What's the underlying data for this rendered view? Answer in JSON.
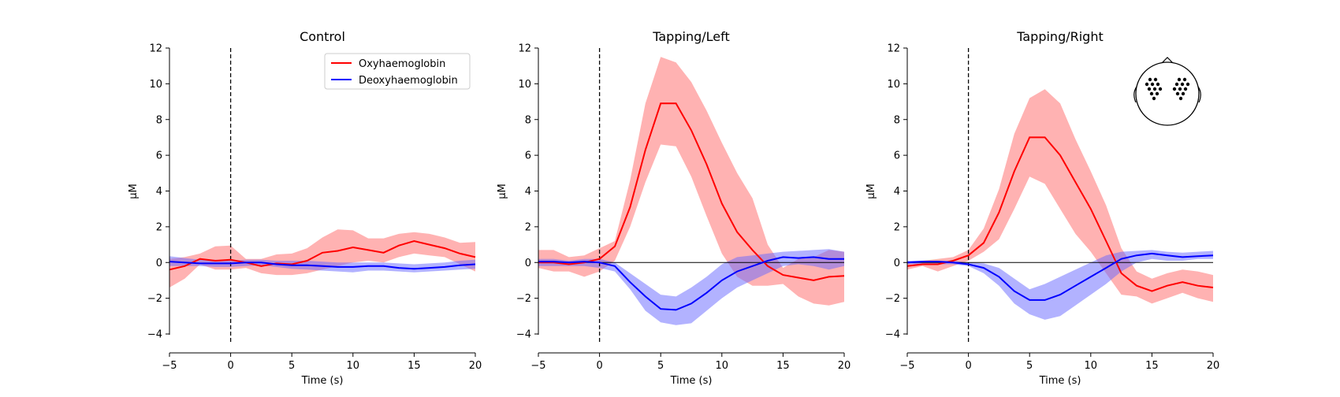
{
  "chart_data": [
    {
      "type": "line",
      "title": "Control",
      "xlabel": "Time (s)",
      "ylabel": "µM",
      "xlim": [
        -5,
        20
      ],
      "ylim": [
        -4,
        12
      ],
      "xticks": [
        -5,
        0,
        5,
        10,
        15,
        20
      ],
      "yticks": [
        -4,
        -2,
        0,
        2,
        4,
        6,
        8,
        10,
        12
      ],
      "grid": false,
      "legend": "top-right",
      "x": [
        -5,
        -3.75,
        -2.5,
        -1.25,
        0,
        1.25,
        2.5,
        3.75,
        5,
        6.25,
        7.5,
        8.75,
        10,
        11.25,
        12.5,
        13.75,
        15,
        16.25,
        17.5,
        18.75,
        20
      ],
      "series": [
        {
          "name": "Oxyhaemoglobin",
          "color": "#ff0000",
          "band_color": "#ff6666",
          "values": [
            -0.4,
            -0.2,
            0.2,
            0.1,
            0.15,
            0.0,
            -0.2,
            -0.05,
            -0.1,
            0.1,
            0.55,
            0.65,
            0.85,
            0.7,
            0.55,
            0.95,
            1.2,
            1.0,
            0.8,
            0.5,
            0.3
          ],
          "lower": [
            -1.4,
            -0.9,
            -0.1,
            -0.4,
            -0.4,
            -0.3,
            -0.6,
            -0.7,
            -0.7,
            -0.6,
            -0.4,
            -0.2,
            0.0,
            0.1,
            0.0,
            0.3,
            0.5,
            0.4,
            0.3,
            -0.1,
            -0.5
          ],
          "upper": [
            0.2,
            0.3,
            0.5,
            0.9,
            0.95,
            0.2,
            0.2,
            0.45,
            0.5,
            0.8,
            1.4,
            1.85,
            1.8,
            1.35,
            1.35,
            1.6,
            1.7,
            1.6,
            1.4,
            1.1,
            1.15
          ]
        },
        {
          "name": "Deoxyhaemoglobin",
          "color": "#0000ff",
          "band_color": "#6666ff",
          "values": [
            0.05,
            0.0,
            -0.05,
            -0.05,
            -0.05,
            0.0,
            0.0,
            -0.1,
            -0.15,
            -0.15,
            -0.2,
            -0.25,
            -0.25,
            -0.2,
            -0.2,
            -0.3,
            -0.35,
            -0.3,
            -0.25,
            -0.15,
            -0.1
          ],
          "lower": [
            -0.2,
            -0.2,
            -0.2,
            -0.25,
            -0.25,
            -0.2,
            -0.15,
            -0.25,
            -0.35,
            -0.4,
            -0.45,
            -0.5,
            -0.55,
            -0.45,
            -0.45,
            -0.5,
            -0.55,
            -0.5,
            -0.45,
            -0.4,
            -0.35
          ],
          "upper": [
            0.35,
            0.25,
            0.15,
            0.15,
            0.1,
            0.15,
            0.15,
            0.1,
            0.1,
            0.1,
            0.05,
            0.0,
            0.0,
            0.0,
            0.0,
            -0.05,
            -0.1,
            -0.05,
            0.0,
            0.1,
            0.15
          ]
        }
      ]
    },
    {
      "type": "line",
      "title": "Tapping/Left",
      "xlabel": "Time (s)",
      "ylabel": "µM",
      "xlim": [
        -5,
        20
      ],
      "ylim": [
        -4,
        12
      ],
      "xticks": [
        -5,
        0,
        5,
        10,
        15,
        20
      ],
      "yticks": [
        -4,
        -2,
        0,
        2,
        4,
        6,
        8,
        10,
        12
      ],
      "grid": false,
      "x": [
        -5,
        -3.75,
        -2.5,
        -1.25,
        0,
        1.25,
        2.5,
        3.75,
        5,
        6.25,
        7.5,
        8.75,
        10,
        11.25,
        12.5,
        13.75,
        15,
        16.25,
        17.5,
        18.75,
        20
      ],
      "series": [
        {
          "name": "Oxyhaemoglobin",
          "color": "#ff0000",
          "band_color": "#ff6666",
          "values": [
            0.0,
            0.0,
            -0.1,
            0.0,
            0.2,
            0.9,
            3.1,
            6.3,
            8.9,
            8.9,
            7.4,
            5.5,
            3.3,
            1.7,
            0.7,
            -0.2,
            -0.7,
            -0.85,
            -1.0,
            -0.8,
            -0.75
          ],
          "lower": [
            -0.3,
            -0.5,
            -0.5,
            -0.8,
            -0.5,
            0.1,
            2.0,
            4.5,
            6.6,
            6.5,
            4.8,
            2.6,
            0.5,
            -0.8,
            -1.3,
            -1.3,
            -1.2,
            -1.9,
            -2.3,
            -2.4,
            -2.2
          ],
          "upper": [
            0.7,
            0.7,
            0.3,
            0.4,
            0.8,
            1.2,
            4.6,
            8.9,
            11.5,
            11.2,
            10.1,
            8.5,
            6.7,
            5.0,
            3.6,
            1.0,
            -0.3,
            0.2,
            0.3,
            0.7,
            0.6
          ]
        },
        {
          "name": "Deoxyhaemoglobin",
          "color": "#0000ff",
          "band_color": "#6666ff",
          "values": [
            0.05,
            0.05,
            0.0,
            0.05,
            0.0,
            -0.2,
            -1.1,
            -1.9,
            -2.6,
            -2.65,
            -2.3,
            -1.7,
            -1.0,
            -0.5,
            -0.2,
            0.1,
            0.3,
            0.25,
            0.3,
            0.2,
            0.2
          ],
          "lower": [
            -0.2,
            -0.2,
            -0.2,
            -0.2,
            -0.3,
            -0.5,
            -1.5,
            -2.7,
            -3.35,
            -3.5,
            -3.4,
            -2.7,
            -2.0,
            -1.4,
            -1.0,
            -0.6,
            -0.2,
            -0.1,
            -0.2,
            -0.4,
            -0.2
          ],
          "upper": [
            0.2,
            0.2,
            0.1,
            0.2,
            0.2,
            0.0,
            -0.6,
            -1.2,
            -1.8,
            -1.9,
            -1.4,
            -0.8,
            -0.1,
            0.3,
            0.4,
            0.5,
            0.6,
            0.65,
            0.7,
            0.75,
            0.6
          ]
        }
      ]
    },
    {
      "type": "line",
      "title": "Tapping/Right",
      "xlabel": "Time (s)",
      "ylabel": "µM",
      "xlim": [
        -5,
        20
      ],
      "ylim": [
        -4,
        12
      ],
      "xticks": [
        -5,
        0,
        5,
        10,
        15,
        20
      ],
      "yticks": [
        -4,
        -2,
        0,
        2,
        4,
        6,
        8,
        10,
        12
      ],
      "grid": false,
      "x": [
        -5,
        -3.75,
        -2.5,
        -1.25,
        0,
        1.25,
        2.5,
        3.75,
        5,
        6.25,
        7.5,
        8.75,
        10,
        11.25,
        12.5,
        13.75,
        15,
        16.25,
        17.5,
        18.75,
        20
      ],
      "series": [
        {
          "name": "Oxyhaemoglobin",
          "color": "#ff0000",
          "band_color": "#ff6666",
          "values": [
            -0.2,
            -0.1,
            -0.1,
            0.1,
            0.4,
            1.1,
            2.8,
            5.1,
            7.0,
            7.0,
            6.0,
            4.5,
            3.0,
            1.2,
            -0.6,
            -1.3,
            -1.6,
            -1.3,
            -1.1,
            -1.3,
            -1.4
          ],
          "lower": [
            -0.4,
            -0.2,
            -0.5,
            -0.2,
            0.1,
            0.6,
            1.3,
            3.0,
            4.8,
            4.4,
            3.0,
            1.6,
            0.6,
            -0.6,
            -1.8,
            -1.9,
            -2.3,
            -2.0,
            -1.7,
            -2.0,
            -2.2
          ],
          "upper": [
            0.0,
            0.1,
            0.2,
            0.3,
            0.7,
            1.9,
            4.1,
            7.2,
            9.2,
            9.7,
            8.9,
            6.9,
            5.1,
            3.2,
            0.8,
            -0.5,
            -0.9,
            -0.6,
            -0.4,
            -0.5,
            -0.7
          ]
        },
        {
          "name": "Deoxyhaemoglobin",
          "color": "#0000ff",
          "band_color": "#6666ff",
          "values": [
            0.0,
            0.05,
            0.05,
            0.0,
            -0.1,
            -0.3,
            -0.8,
            -1.6,
            -2.1,
            -2.1,
            -1.8,
            -1.3,
            -0.8,
            -0.3,
            0.2,
            0.4,
            0.5,
            0.4,
            0.3,
            0.35,
            0.4
          ],
          "lower": [
            -0.1,
            -0.1,
            -0.1,
            -0.1,
            -0.2,
            -0.6,
            -1.3,
            -2.3,
            -2.9,
            -3.2,
            -3.0,
            -2.4,
            -1.8,
            -1.2,
            -0.5,
            0.0,
            0.2,
            0.1,
            0.1,
            0.2,
            0.2
          ],
          "upper": [
            0.1,
            0.1,
            0.1,
            0.1,
            0.0,
            -0.05,
            -0.3,
            -0.9,
            -1.5,
            -1.2,
            -0.8,
            -0.4,
            0.0,
            0.4,
            0.6,
            0.65,
            0.7,
            0.6,
            0.55,
            0.6,
            0.65
          ]
        }
      ],
      "inset": {
        "type": "sensor-head-map",
        "left_dots": 11,
        "right_dots": 11
      }
    }
  ]
}
